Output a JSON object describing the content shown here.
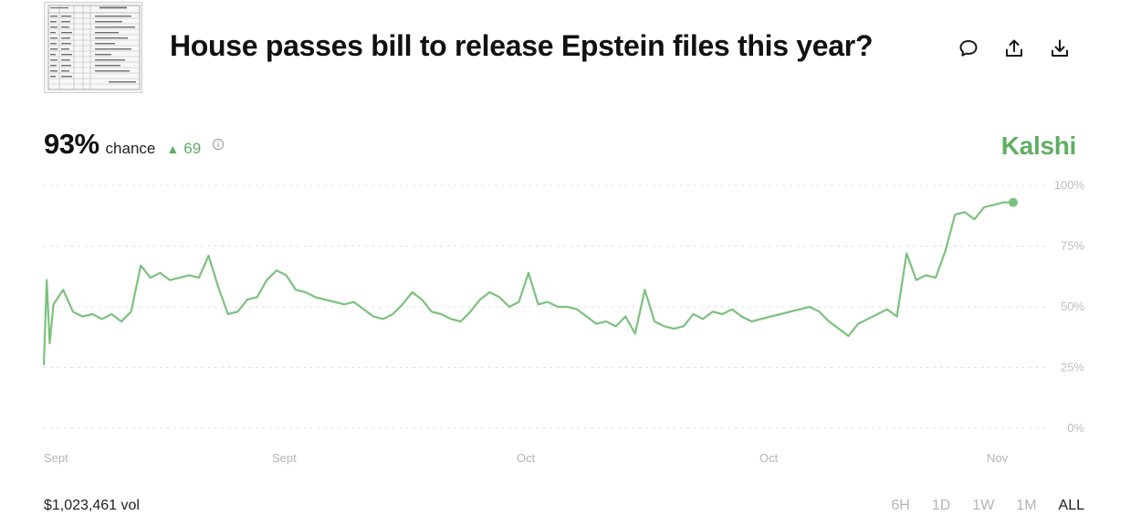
{
  "market": {
    "title": "House passes bill to release Epstein files this year?",
    "probability": "93%",
    "chance_label": "chance",
    "change": "69",
    "source": "Kalshi",
    "volume": "$1,023,461 vol"
  },
  "actions": {
    "comment_icon": "comment-icon",
    "share_icon": "share-icon",
    "download_icon": "download-icon"
  },
  "time_ranges": [
    {
      "label": "6H",
      "active": false
    },
    {
      "label": "1D",
      "active": false
    },
    {
      "label": "1W",
      "active": false
    },
    {
      "label": "1M",
      "active": false
    },
    {
      "label": "ALL",
      "active": true
    }
  ],
  "colors": {
    "accent_green": "#5fae62",
    "line_green": "#7cc17e",
    "grid": "#d9d9d9",
    "axis_text": "#b5b5b5"
  },
  "chart_data": {
    "type": "line",
    "y_ticks": [
      "100%",
      "75%",
      "50%",
      "25%",
      "0%"
    ],
    "ylim": [
      0,
      100
    ],
    "x_ticks": [
      "Sept",
      "Sept",
      "Oct",
      "Oct",
      "Nov"
    ],
    "x": [
      0,
      0.3,
      0.6,
      1,
      2,
      3,
      4,
      5,
      6,
      7,
      8,
      9,
      10,
      11,
      12,
      13,
      14,
      15,
      16,
      17,
      18,
      19,
      20,
      21,
      22,
      23,
      24,
      25,
      26,
      27,
      28,
      29,
      30,
      31,
      32,
      33,
      34,
      35,
      36,
      37,
      38,
      39,
      40,
      41,
      42,
      43,
      44,
      45,
      46,
      47,
      48,
      49,
      50,
      51,
      52,
      53,
      54,
      55,
      56,
      57,
      58,
      59,
      60,
      61,
      62,
      63,
      64,
      65,
      66,
      67,
      68,
      69,
      70,
      71,
      72,
      73,
      74,
      75,
      76,
      77,
      78,
      79,
      80,
      81,
      82,
      83,
      84,
      85,
      86,
      87,
      88,
      89,
      90,
      91,
      92,
      93,
      94,
      95,
      96,
      97,
      98,
      99,
      100
    ],
    "series": [
      {
        "values": [
          26,
          61,
          35,
          51,
          57,
          48,
          46,
          47,
          45,
          47,
          44,
          48,
          67,
          62,
          64,
          61,
          62,
          63,
          62,
          71,
          58,
          47,
          48,
          53,
          54,
          61,
          65,
          63,
          57,
          56,
          54,
          53,
          52,
          51,
          52,
          49,
          46,
          45,
          47,
          51,
          56,
          53,
          48,
          47,
          45,
          44,
          48,
          53,
          56,
          54,
          50,
          52,
          64,
          51,
          52,
          50,
          50,
          49,
          46,
          43,
          44,
          42,
          46,
          39,
          57,
          44,
          42,
          41,
          42,
          47,
          45,
          48,
          47,
          49,
          46,
          44,
          45,
          46,
          47,
          48,
          49,
          50,
          48,
          44,
          41,
          38,
          43,
          45,
          47,
          49,
          46,
          72,
          61,
          63,
          62,
          73,
          88,
          89,
          86,
          91,
          92,
          93,
          93
        ]
      }
    ]
  }
}
